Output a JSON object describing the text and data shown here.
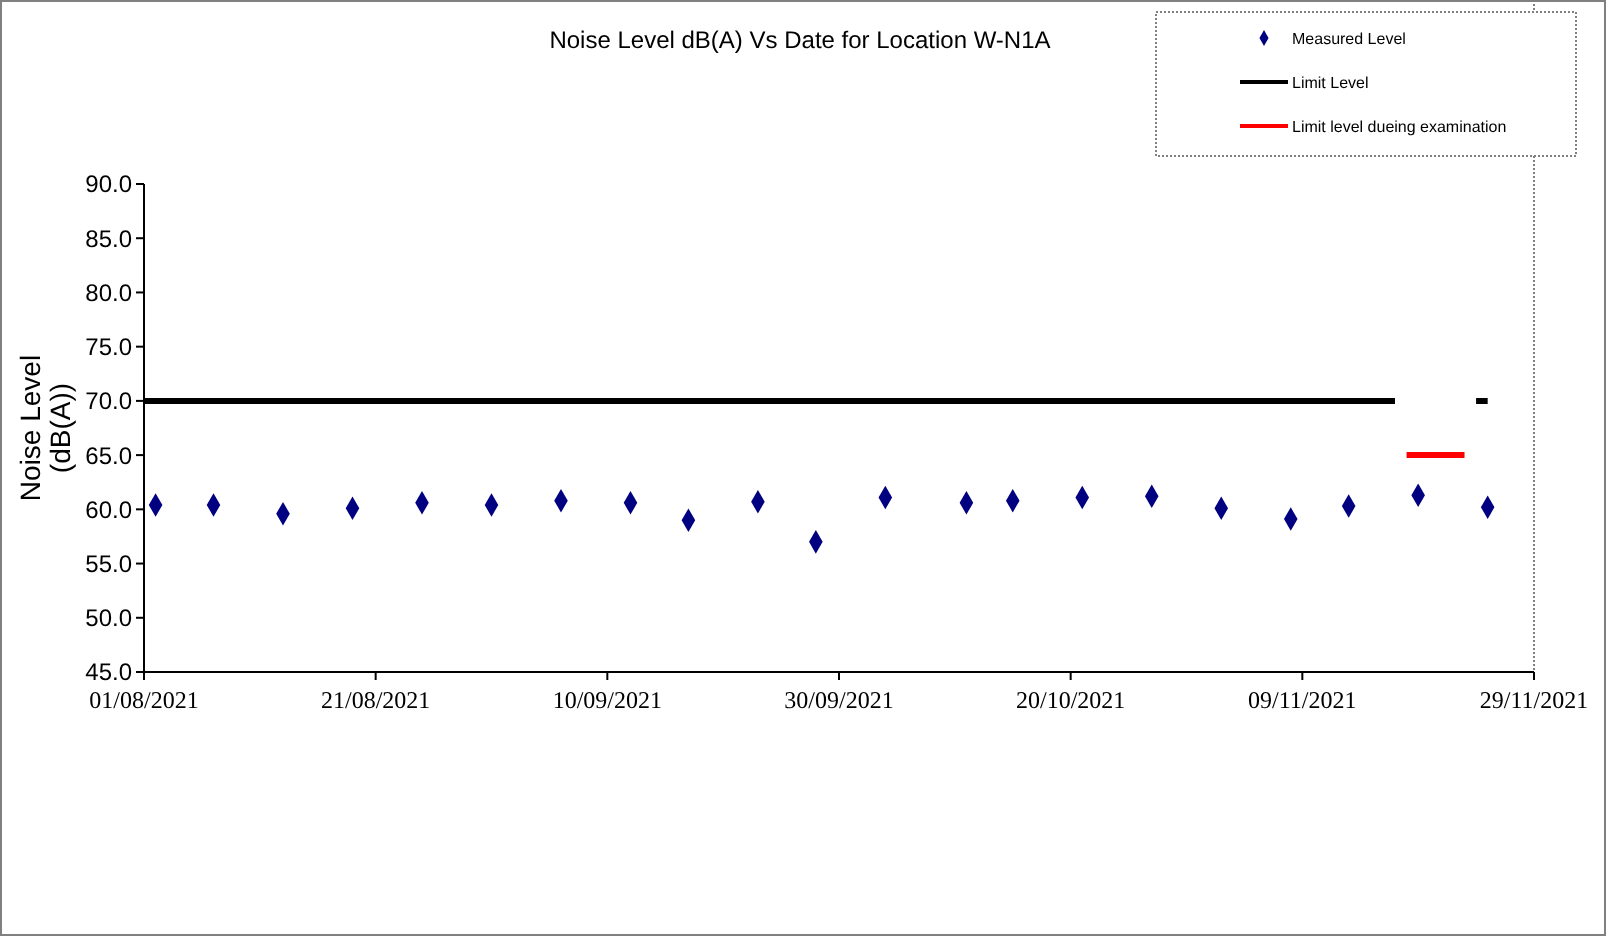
{
  "chart_data": {
    "type": "scatter",
    "title": "Noise Level dB(A) Vs Date for Location W-N1A",
    "ylabel": "Noise Level\n(dB(A))",
    "xlim": [
      "2021-08-01",
      "2021-11-29"
    ],
    "xticks": [
      {
        "value": "2021-08-01",
        "label": "01/08/2021"
      },
      {
        "value": "2021-08-21",
        "label": "21/08/2021"
      },
      {
        "value": "2021-09-10",
        "label": "10/09/2021"
      },
      {
        "value": "2021-09-30",
        "label": "30/09/2021"
      },
      {
        "value": "2021-10-20",
        "label": "20/10/2021"
      },
      {
        "value": "2021-11-09",
        "label": "09/11/2021"
      },
      {
        "value": "2021-11-29",
        "label": "29/11/2021"
      }
    ],
    "ylim": [
      45,
      90
    ],
    "yticks": [
      {
        "value": 45,
        "label": "45.0"
      },
      {
        "value": 50,
        "label": "50.0"
      },
      {
        "value": 55,
        "label": "55.0"
      },
      {
        "value": 60,
        "label": "60.0"
      },
      {
        "value": 65,
        "label": "65.0"
      },
      {
        "value": 70,
        "label": "70.0"
      },
      {
        "value": 75,
        "label": "75.0"
      },
      {
        "value": 80,
        "label": "80.0"
      },
      {
        "value": 85,
        "label": "85.0"
      },
      {
        "value": 90,
        "label": "90.0"
      }
    ],
    "grid": false,
    "legend": "top right",
    "series": [
      {
        "name": "Measured Level",
        "marker": "diamond",
        "color": "#000080",
        "x": [
          "2021-08-02",
          "2021-08-07",
          "2021-08-13",
          "2021-08-19",
          "2021-08-25",
          "2021-08-31",
          "2021-09-06",
          "2021-09-12",
          "2021-09-17",
          "2021-09-23",
          "2021-09-28",
          "2021-10-04",
          "2021-10-11",
          "2021-10-15",
          "2021-10-21",
          "2021-10-27",
          "2021-11-02",
          "2021-11-08",
          "2021-11-13",
          "2021-11-19",
          "2021-11-25"
        ],
        "values": [
          60.4,
          60.4,
          59.6,
          60.1,
          60.6,
          60.4,
          60.8,
          60.6,
          59.0,
          60.7,
          57.0,
          61.1,
          60.6,
          60.8,
          61.1,
          61.2,
          60.1,
          59.1,
          60.3,
          61.3,
          60.2
        ]
      },
      {
        "name": "Limit Level",
        "type": "line",
        "color": "#000000",
        "x": [
          "2021-08-01",
          "2021-11-17",
          "2021-11-21",
          "2021-11-24",
          "2021-11-25"
        ],
        "values": [
          70,
          70,
          null,
          70,
          70
        ]
      },
      {
        "name": "Limit level dueing examination",
        "type": "line",
        "color": "#ff0000",
        "x": [
          "2021-11-18",
          "2021-11-23"
        ],
        "values": [
          65,
          65
        ]
      }
    ]
  }
}
